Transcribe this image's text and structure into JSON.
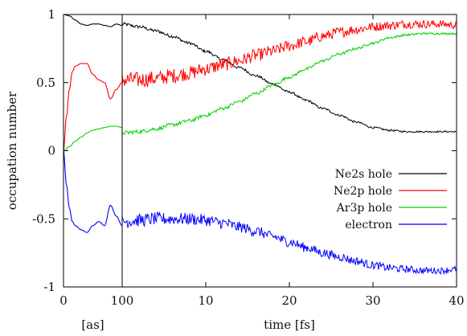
{
  "chart_data": {
    "type": "line",
    "title": "",
    "ylabel": "occupation number",
    "ylim": [
      -1,
      1
    ],
    "yticks": [
      1,
      0.5,
      0,
      -0.5,
      -1
    ],
    "ytick_labels": [
      "1",
      "0.5",
      "0",
      "-0.5",
      "-1"
    ],
    "panels": [
      {
        "xlabel": "[as]",
        "unit": "as",
        "xlim": [
          0,
          100
        ],
        "xticks": [
          0,
          100
        ],
        "xtick_labels": [
          "0",
          "100"
        ]
      },
      {
        "xlabel": "time [fs]",
        "unit": "fs",
        "xlim": [
          0,
          40
        ],
        "xticks": [
          10,
          20,
          30,
          40
        ],
        "xtick_labels": [
          "10",
          "20",
          "30",
          "40"
        ]
      }
    ],
    "grid": false,
    "legend_position": "right",
    "series": [
      {
        "name": "Ne2s hole",
        "color": "#000000",
        "as_x": [
          0,
          10,
          20,
          30,
          40,
          50,
          60,
          70,
          80,
          90,
          100
        ],
        "as_y": [
          1.0,
          0.99,
          0.96,
          0.93,
          0.92,
          0.93,
          0.93,
          0.92,
          0.91,
          0.93,
          0.92
        ],
        "fs_x": [
          0,
          2,
          4,
          6,
          8,
          10,
          12,
          14,
          16,
          18,
          20,
          22,
          24,
          26,
          28,
          30,
          32,
          34,
          36,
          38,
          40
        ],
        "fs_y": [
          0.93,
          0.91,
          0.88,
          0.84,
          0.79,
          0.73,
          0.67,
          0.61,
          0.55,
          0.49,
          0.43,
          0.37,
          0.31,
          0.26,
          0.21,
          0.17,
          0.15,
          0.14,
          0.14,
          0.14,
          0.14
        ],
        "noise": 0.012
      },
      {
        "name": "Ne2p hole",
        "color": "#ff0000",
        "as_x": [
          0,
          5,
          10,
          15,
          20,
          30,
          40,
          50,
          60,
          70,
          80,
          90,
          100
        ],
        "as_y": [
          0.0,
          0.25,
          0.45,
          0.58,
          0.62,
          0.64,
          0.64,
          0.56,
          0.52,
          0.5,
          0.38,
          0.45,
          0.5
        ],
        "fs_x": [
          0,
          2,
          4,
          6,
          8,
          10,
          12,
          14,
          16,
          18,
          20,
          22,
          24,
          26,
          28,
          30,
          32,
          34,
          36,
          38,
          40
        ],
        "fs_y": [
          0.52,
          0.52,
          0.53,
          0.55,
          0.57,
          0.6,
          0.63,
          0.66,
          0.7,
          0.73,
          0.77,
          0.8,
          0.84,
          0.87,
          0.89,
          0.91,
          0.92,
          0.93,
          0.93,
          0.93,
          0.92
        ],
        "noise": 0.06
      },
      {
        "name": "Ar3p hole",
        "color": "#00d000",
        "as_x": [
          0,
          10,
          20,
          30,
          40,
          50,
          60,
          70,
          80,
          90,
          100
        ],
        "as_y": [
          0.0,
          0.03,
          0.07,
          0.1,
          0.13,
          0.15,
          0.16,
          0.17,
          0.18,
          0.18,
          0.17
        ],
        "fs_x": [
          0,
          2,
          4,
          6,
          8,
          10,
          12,
          14,
          16,
          18,
          20,
          22,
          24,
          26,
          28,
          30,
          32,
          34,
          36,
          38,
          40
        ],
        "fs_y": [
          0.13,
          0.14,
          0.16,
          0.19,
          0.22,
          0.26,
          0.31,
          0.36,
          0.42,
          0.48,
          0.54,
          0.6,
          0.66,
          0.71,
          0.75,
          0.79,
          0.83,
          0.85,
          0.86,
          0.86,
          0.86
        ],
        "noise": 0.015
      },
      {
        "name": "electron",
        "color": "#0000ff",
        "as_x": [
          0,
          5,
          10,
          15,
          20,
          30,
          40,
          50,
          60,
          70,
          80,
          90,
          100
        ],
        "as_y": [
          0.0,
          -0.25,
          -0.42,
          -0.52,
          -0.55,
          -0.58,
          -0.6,
          -0.55,
          -0.52,
          -0.55,
          -0.4,
          -0.48,
          -0.55
        ],
        "fs_x": [
          0,
          2,
          4,
          6,
          8,
          10,
          12,
          14,
          16,
          18,
          20,
          22,
          24,
          26,
          28,
          30,
          32,
          34,
          36,
          38,
          40
        ],
        "fs_y": [
          -0.52,
          -0.51,
          -0.5,
          -0.5,
          -0.5,
          -0.51,
          -0.53,
          -0.56,
          -0.59,
          -0.63,
          -0.67,
          -0.71,
          -0.75,
          -0.78,
          -0.81,
          -0.84,
          -0.86,
          -0.87,
          -0.88,
          -0.88,
          -0.87
        ],
        "noise": 0.05
      }
    ]
  }
}
